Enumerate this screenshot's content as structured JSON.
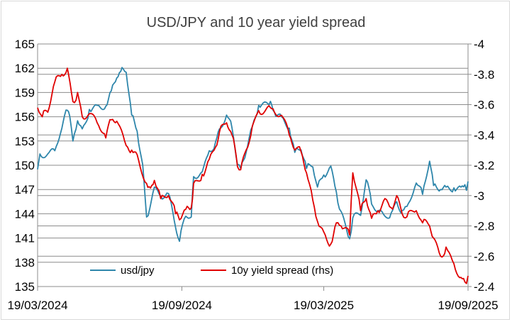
{
  "chart_data": {
    "type": "line",
    "title": "USD/JPY and 10 year yield spread",
    "xlabel": "",
    "ylabel": "",
    "x_ticks": [
      "19/03/2024",
      "19/09/2024",
      "19/03/2025",
      "19/09/2025"
    ],
    "x_range": [
      "2024-03-19",
      "2025-09-19"
    ],
    "y_left": {
      "range": [
        135,
        165
      ],
      "ticks": [
        "135",
        "138",
        "141",
        "144",
        "147",
        "150",
        "153",
        "156",
        "159",
        "162",
        "165"
      ]
    },
    "y_right": {
      "range": [
        -2.4,
        -4.0
      ],
      "ticks": [
        "-2.4",
        "-2.6",
        "-2.8",
        "-3",
        "-3.2",
        "-3.4",
        "-3.6",
        "-3.8",
        "-4"
      ]
    },
    "grid": true,
    "legend_position": "bottom-left",
    "series": [
      {
        "name": "usd/jpy",
        "axis": "left",
        "color": "#2e86ab",
        "points": [
          [
            "2024-03-19",
            149.5
          ],
          [
            "2024-03-22",
            151.4
          ],
          [
            "2024-04-01",
            151.4
          ],
          [
            "2024-04-10",
            151.8
          ],
          [
            "2024-04-19",
            154.6
          ],
          [
            "2024-04-26",
            156.8
          ],
          [
            "2024-04-29",
            156.1
          ],
          [
            "2024-05-03",
            153.0
          ],
          [
            "2024-05-09",
            155.5
          ],
          [
            "2024-05-15",
            154.5
          ],
          [
            "2024-05-24",
            156.9
          ],
          [
            "2024-06-03",
            157.4
          ],
          [
            "2024-06-14",
            157.3
          ],
          [
            "2024-06-21",
            159.2
          ],
          [
            "2024-06-28",
            160.8
          ],
          [
            "2024-07-03",
            161.6
          ],
          [
            "2024-07-10",
            161.5
          ],
          [
            "2024-07-17",
            156.2
          ],
          [
            "2024-07-24",
            154.2
          ],
          [
            "2024-07-31",
            150.1
          ],
          [
            "2024-08-05",
            143.6
          ],
          [
            "2024-08-15",
            147.3
          ],
          [
            "2024-08-23",
            146.2
          ],
          [
            "2024-09-02",
            146.5
          ],
          [
            "2024-09-11",
            142.3
          ],
          [
            "2024-09-16",
            140.6
          ],
          [
            "2024-09-24",
            143.7
          ],
          [
            "2024-10-01",
            143.6
          ],
          [
            "2024-10-04",
            148.6
          ],
          [
            "2024-10-15",
            149.2
          ],
          [
            "2024-10-24",
            151.8
          ],
          [
            "2024-11-01",
            152.9
          ],
          [
            "2024-11-06",
            154.5
          ],
          [
            "2024-11-15",
            156.2
          ],
          [
            "2024-11-22",
            154.6
          ],
          [
            "2024-11-29",
            150.1
          ],
          [
            "2024-12-03",
            149.6
          ],
          [
            "2024-12-10",
            151.6
          ],
          [
            "2024-12-18",
            154.8
          ],
          [
            "2024-12-26",
            157.4
          ],
          [
            "2025-01-10",
            157.9
          ],
          [
            "2025-01-15",
            156.6
          ],
          [
            "2025-01-24",
            156.0
          ],
          [
            "2025-02-03",
            154.6
          ],
          [
            "2025-02-10",
            151.6
          ],
          [
            "2025-02-18",
            151.9
          ],
          [
            "2025-02-25",
            149.6
          ],
          [
            "2025-03-05",
            149.8
          ],
          [
            "2025-03-11",
            147.3
          ],
          [
            "2025-03-19",
            148.8
          ],
          [
            "2025-03-28",
            149.9
          ],
          [
            "2025-04-04",
            146.7
          ],
          [
            "2025-04-10",
            144.3
          ],
          [
            "2025-04-21",
            140.9
          ],
          [
            "2025-04-25",
            143.5
          ],
          [
            "2025-05-05",
            143.8
          ],
          [
            "2025-05-12",
            148.2
          ],
          [
            "2025-05-19",
            145.2
          ],
          [
            "2025-05-27",
            144.3
          ],
          [
            "2025-06-05",
            143.7
          ],
          [
            "2025-06-13",
            144.1
          ],
          [
            "2025-06-20",
            145.5
          ],
          [
            "2025-06-27",
            144.4
          ],
          [
            "2025-07-03",
            144.9
          ],
          [
            "2025-07-15",
            147.8
          ],
          [
            "2025-07-23",
            146.4
          ],
          [
            "2025-08-01",
            150.5
          ],
          [
            "2025-08-06",
            147.5
          ],
          [
            "2025-08-15",
            147.0
          ],
          [
            "2025-08-22",
            147.3
          ],
          [
            "2025-09-01",
            147.2
          ],
          [
            "2025-09-10",
            147.3
          ],
          [
            "2025-09-15",
            147.6
          ],
          [
            "2025-09-17",
            146.9
          ],
          [
            "2025-09-19",
            148.0
          ]
        ]
      },
      {
        "name": "10y yield spread (rhs)",
        "axis": "right",
        "color": "#e00000",
        "points": [
          [
            "2024-03-19",
            -3.58
          ],
          [
            "2024-03-25",
            -3.52
          ],
          [
            "2024-04-01",
            -3.55
          ],
          [
            "2024-04-10",
            -3.75
          ],
          [
            "2024-04-19",
            -3.8
          ],
          [
            "2024-04-26",
            -3.84
          ],
          [
            "2024-05-03",
            -3.62
          ],
          [
            "2024-05-09",
            -3.68
          ],
          [
            "2024-05-15",
            -3.52
          ],
          [
            "2024-05-24",
            -3.54
          ],
          [
            "2024-06-03",
            -3.48
          ],
          [
            "2024-06-14",
            -3.38
          ],
          [
            "2024-06-21",
            -3.5
          ],
          [
            "2024-06-28",
            -3.49
          ],
          [
            "2024-07-10",
            -3.33
          ],
          [
            "2024-07-17",
            -3.3
          ],
          [
            "2024-07-24",
            -3.27
          ],
          [
            "2024-08-05",
            -3.08
          ],
          [
            "2024-08-10",
            -3.05
          ],
          [
            "2024-08-15",
            -3.1
          ],
          [
            "2024-08-23",
            -2.98
          ],
          [
            "2024-09-02",
            -3.0
          ],
          [
            "2024-09-11",
            -2.88
          ],
          [
            "2024-09-16",
            -2.84
          ],
          [
            "2024-09-24",
            -2.91
          ],
          [
            "2024-10-01",
            -2.92
          ],
          [
            "2024-10-04",
            -3.08
          ],
          [
            "2024-10-15",
            -3.14
          ],
          [
            "2024-10-24",
            -3.24
          ],
          [
            "2024-11-01",
            -3.32
          ],
          [
            "2024-11-06",
            -3.42
          ],
          [
            "2024-11-15",
            -3.48
          ],
          [
            "2024-11-22",
            -3.4
          ],
          [
            "2024-11-29",
            -3.19
          ],
          [
            "2024-12-03",
            -3.17
          ],
          [
            "2024-12-10",
            -3.3
          ],
          [
            "2024-12-18",
            -3.46
          ],
          [
            "2024-12-26",
            -3.56
          ],
          [
            "2025-01-10",
            -3.58
          ],
          [
            "2025-01-15",
            -3.55
          ],
          [
            "2025-01-24",
            -3.53
          ],
          [
            "2025-02-03",
            -3.4
          ],
          [
            "2025-02-10",
            -3.3
          ],
          [
            "2025-02-18",
            -3.29
          ],
          [
            "2025-02-25",
            -3.15
          ],
          [
            "2025-03-05",
            -2.97
          ],
          [
            "2025-03-11",
            -2.83
          ],
          [
            "2025-03-19",
            -2.76
          ],
          [
            "2025-03-28",
            -2.68
          ],
          [
            "2025-04-04",
            -2.82
          ],
          [
            "2025-04-10",
            -2.8
          ],
          [
            "2025-04-21",
            -2.74
          ],
          [
            "2025-04-25",
            -3.15
          ],
          [
            "2025-05-05",
            -2.9
          ],
          [
            "2025-05-12",
            -2.98
          ],
          [
            "2025-05-19",
            -2.85
          ],
          [
            "2025-05-27",
            -2.9
          ],
          [
            "2025-06-05",
            -2.98
          ],
          [
            "2025-06-13",
            -2.92
          ],
          [
            "2025-06-20",
            -3.0
          ],
          [
            "2025-06-27",
            -2.88
          ],
          [
            "2025-07-03",
            -2.86
          ],
          [
            "2025-07-15",
            -2.9
          ],
          [
            "2025-07-23",
            -2.82
          ],
          [
            "2025-08-01",
            -2.8
          ],
          [
            "2025-08-06",
            -2.72
          ],
          [
            "2025-08-15",
            -2.6
          ],
          [
            "2025-08-22",
            -2.66
          ],
          [
            "2025-09-01",
            -2.55
          ],
          [
            "2025-09-10",
            -2.46
          ],
          [
            "2025-09-15",
            -2.43
          ],
          [
            "2025-09-17",
            -2.42
          ],
          [
            "2025-09-19",
            -2.47
          ]
        ]
      }
    ]
  }
}
